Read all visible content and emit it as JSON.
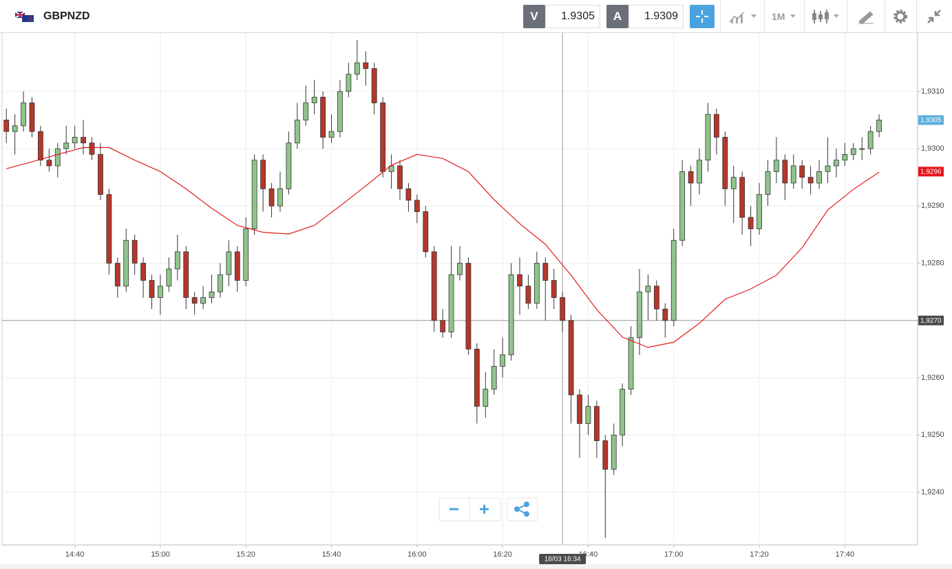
{
  "toolbar": {
    "symbol": "GBPNZD",
    "bid_label": "V",
    "bid": 1.9305,
    "ask_label": "A",
    "ask": 1.9309,
    "timeframe": "1M"
  },
  "chart_data": {
    "type": "candlestick",
    "up_color": "#8fc48a",
    "down_color": "#b5372b",
    "x": [
      "14:24",
      "14:26",
      "14:28",
      "14:30",
      "14:32",
      "14:34",
      "14:36",
      "14:38",
      "14:40",
      "14:42",
      "14:44",
      "14:46",
      "14:48",
      "14:50",
      "14:52",
      "14:54",
      "14:56",
      "14:58",
      "15:00",
      "15:02",
      "15:04",
      "15:06",
      "15:08",
      "15:10",
      "15:12",
      "15:14",
      "15:16",
      "15:18",
      "15:20",
      "15:22",
      "15:24",
      "15:26",
      "15:28",
      "15:30",
      "15:32",
      "15:34",
      "15:36",
      "15:38",
      "15:40",
      "15:42",
      "15:44",
      "15:46",
      "15:48",
      "15:50",
      "15:52",
      "15:54",
      "15:56",
      "15:58",
      "16:00",
      "16:02",
      "16:04",
      "16:06",
      "16:08",
      "16:10",
      "16:12",
      "16:14",
      "16:16",
      "16:18",
      "16:20",
      "16:22",
      "16:24",
      "16:26",
      "16:28",
      "16:30",
      "16:32",
      "16:34",
      "16:36",
      "16:38",
      "16:40",
      "16:42",
      "16:44",
      "16:46",
      "16:48",
      "16:50",
      "16:52",
      "16:54",
      "16:56",
      "16:58",
      "17:00",
      "17:02",
      "17:04",
      "17:06",
      "17:08",
      "17:10",
      "17:12",
      "17:14",
      "17:16",
      "17:18",
      "17:20",
      "17:22",
      "17:24",
      "17:26",
      "17:28",
      "17:30",
      "17:32",
      "17:34",
      "17:36",
      "17:38",
      "17:40",
      "17:42",
      "17:44",
      "17:46",
      "17:48"
    ],
    "open": [
      1.9305,
      1.9303,
      1.9304,
      1.9308,
      1.9303,
      1.9298,
      1.9297,
      1.93,
      1.9301,
      1.9302,
      1.9301,
      1.9299,
      1.9292,
      1.928,
      1.9276,
      1.9284,
      1.928,
      1.9277,
      1.9274,
      1.9276,
      1.9279,
      1.9282,
      1.9274,
      1.9273,
      1.9274,
      1.9275,
      1.9278,
      1.9282,
      1.9277,
      1.9286,
      1.9298,
      1.9293,
      1.929,
      1.9293,
      1.9301,
      1.9305,
      1.9308,
      1.9309,
      1.9302,
      1.9303,
      1.931,
      1.9313,
      1.9315,
      1.9314,
      1.9308,
      1.9296,
      1.9297,
      1.9293,
      1.9291,
      1.9289,
      1.9282,
      1.927,
      1.9268,
      1.9278,
      1.928,
      1.9265,
      1.9255,
      1.9258,
      1.9262,
      1.9264,
      1.9278,
      1.9276,
      1.9273,
      1.928,
      1.9277,
      1.9274,
      1.927,
      1.9257,
      1.9252,
      1.9255,
      1.9249,
      1.9244,
      1.925,
      1.9258,
      1.9267,
      1.9275,
      1.9276,
      1.9272,
      1.927,
      1.9284,
      1.9296,
      1.9294,
      1.9298,
      1.9306,
      1.9302,
      1.9293,
      1.9295,
      1.9288,
      1.9286,
      1.9292,
      1.9296,
      1.9298,
      1.9294,
      1.9297,
      1.9295,
      1.9294,
      1.9296,
      1.9297,
      1.9298,
      1.9299,
      1.93,
      1.93,
      1.9303
    ],
    "high": [
      1.9307,
      1.9306,
      1.931,
      1.9309,
      1.9304,
      1.93,
      1.9301,
      1.9304,
      1.9304,
      1.9305,
      1.9302,
      1.9301,
      1.9293,
      1.9281,
      1.9286,
      1.9285,
      1.9281,
      1.9278,
      1.9278,
      1.9281,
      1.9285,
      1.9283,
      1.9275,
      1.9276,
      1.9278,
      1.928,
      1.9284,
      1.9283,
      1.9288,
      1.9299,
      1.9299,
      1.9294,
      1.9296,
      1.9303,
      1.9308,
      1.9311,
      1.9312,
      1.931,
      1.9306,
      1.9312,
      1.9315,
      1.9319,
      1.9317,
      1.9315,
      1.9309,
      1.9299,
      1.9298,
      1.9294,
      1.9292,
      1.929,
      1.9283,
      1.9272,
      1.9283,
      1.9283,
      1.9281,
      1.9266,
      1.9261,
      1.9265,
      1.9267,
      1.928,
      1.9281,
      1.9278,
      1.9282,
      1.9281,
      1.9279,
      1.9275,
      1.9271,
      1.9258,
      1.9257,
      1.9256,
      1.925,
      1.9252,
      1.9259,
      1.9269,
      1.9279,
      1.9278,
      1.9277,
      1.9273,
      1.9286,
      1.9298,
      1.9297,
      1.93,
      1.9308,
      1.9307,
      1.9303,
      1.9297,
      1.9296,
      1.929,
      1.9294,
      1.9298,
      1.9302,
      1.9299,
      1.9299,
      1.9298,
      1.9297,
      1.9298,
      1.9302,
      1.93,
      1.9301,
      1.9301,
      1.9302,
      1.9304,
      1.9306
    ],
    "low": [
      1.9301,
      1.9299,
      1.9303,
      1.9302,
      1.9297,
      1.9296,
      1.9295,
      1.9299,
      1.93,
      1.9299,
      1.9298,
      1.9291,
      1.9278,
      1.9274,
      1.9275,
      1.9278,
      1.9274,
      1.9272,
      1.9271,
      1.9275,
      1.9277,
      1.9272,
      1.9271,
      1.9272,
      1.9273,
      1.9274,
      1.9276,
      1.9275,
      1.9276,
      1.9285,
      1.9289,
      1.9288,
      1.9289,
      1.9292,
      1.93,
      1.9304,
      1.9306,
      1.93,
      1.9301,
      1.9302,
      1.9309,
      1.9312,
      1.9311,
      1.9306,
      1.9295,
      1.9293,
      1.9291,
      1.9289,
      1.9287,
      1.9281,
      1.9268,
      1.9267,
      1.9267,
      1.9277,
      1.9264,
      1.9252,
      1.9253,
      1.9257,
      1.926,
      1.9263,
      1.9271,
      1.9272,
      1.9272,
      1.927,
      1.9272,
      1.9268,
      1.9252,
      1.9246,
      1.925,
      1.9246,
      1.9232,
      1.9243,
      1.9248,
      1.9257,
      1.9264,
      1.927,
      1.927,
      1.9267,
      1.9269,
      1.9283,
      1.929,
      1.9292,
      1.9296,
      1.9299,
      1.929,
      1.9287,
      1.9285,
      1.9283,
      1.9285,
      1.929,
      1.9294,
      1.9291,
      1.9293,
      1.9293,
      1.9292,
      1.9293,
      1.9294,
      1.9295,
      1.9297,
      1.9298,
      1.9298,
      1.9299,
      1.9302
    ],
    "close": [
      1.9303,
      1.9304,
      1.9308,
      1.9303,
      1.9298,
      1.9297,
      1.93,
      1.9301,
      1.9302,
      1.9301,
      1.9299,
      1.9292,
      1.928,
      1.9276,
      1.9284,
      1.928,
      1.9277,
      1.9274,
      1.9276,
      1.9279,
      1.9282,
      1.9274,
      1.9273,
      1.9274,
      1.9275,
      1.9278,
      1.9282,
      1.9277,
      1.9286,
      1.9298,
      1.9293,
      1.929,
      1.9293,
      1.9301,
      1.9305,
      1.9308,
      1.9309,
      1.9302,
      1.9303,
      1.931,
      1.9313,
      1.9315,
      1.9314,
      1.9308,
      1.9296,
      1.9297,
      1.9293,
      1.9291,
      1.9289,
      1.9282,
      1.927,
      1.9268,
      1.9278,
      1.928,
      1.9265,
      1.9255,
      1.9258,
      1.9262,
      1.9264,
      1.9278,
      1.9276,
      1.9273,
      1.928,
      1.9277,
      1.9274,
      1.927,
      1.9257,
      1.9252,
      1.9255,
      1.9249,
      1.9244,
      1.925,
      1.9258,
      1.9267,
      1.9275,
      1.9276,
      1.9272,
      1.927,
      1.9284,
      1.9296,
      1.9294,
      1.9298,
      1.9306,
      1.9302,
      1.9293,
      1.9295,
      1.9288,
      1.9286,
      1.9292,
      1.9296,
      1.9298,
      1.9294,
      1.9297,
      1.9295,
      1.9294,
      1.9296,
      1.9297,
      1.9298,
      1.9299,
      1.93,
      1.93,
      1.9303,
      1.9305
    ],
    "lines": [
      {
        "color": "#e31b1b",
        "x": [
          "14:24",
          "14:30",
          "14:36",
          "14:42",
          "14:48",
          "14:54",
          "15:00",
          "15:06",
          "15:12",
          "15:18",
          "15:24",
          "15:30",
          "15:36",
          "15:42",
          "15:48",
          "15:54",
          "16:00",
          "16:06",
          "16:12",
          "16:18",
          "16:24",
          "16:30",
          "16:36",
          "16:42",
          "16:48",
          "16:54",
          "17:00",
          "17:06",
          "17:12",
          "17:18",
          "17:24",
          "17:30",
          "17:36",
          "17:42",
          "17:48"
        ],
        "values": [
          1.92965,
          1.92977,
          1.9299,
          1.93002,
          1.93002,
          1.9298,
          1.9296,
          1.9293,
          1.92896,
          1.92866,
          1.92854,
          1.92851,
          1.92866,
          1.929,
          1.92935,
          1.92971,
          1.9299,
          1.92983,
          1.9296,
          1.92911,
          1.92869,
          1.92833,
          1.92779,
          1.92719,
          1.92671,
          1.92653,
          1.92662,
          1.92695,
          1.92737,
          1.92755,
          1.92779,
          1.92827,
          1.92893,
          1.92929,
          1.92959
        ]
      }
    ],
    "xlim": [
      "14:23",
      "17:57"
    ],
    "xticks": [
      "14:40",
      "15:00",
      "15:20",
      "15:40",
      "16:00",
      "16:20",
      "16:40",
      "17:00",
      "17:20",
      "17:40"
    ],
    "ylim": [
      1.92308,
      1.93202
    ],
    "yticks": [
      {
        "value": 1.924,
        "label": "1,9240"
      },
      {
        "value": 1.925,
        "label": "1,9250"
      },
      {
        "value": 1.926,
        "label": "1,9260"
      },
      {
        "value": 1.927,
        "label": "1,9270"
      },
      {
        "value": 1.928,
        "label": "1,9280"
      },
      {
        "value": 1.929,
        "label": "1,9290"
      },
      {
        "value": 1.93,
        "label": "1,9300"
      },
      {
        "value": 1.931,
        "label": "1,9310"
      }
    ],
    "grid": true,
    "markers": [
      {
        "value": 1.9305,
        "label": "1,9305",
        "color": "#5aaee0"
      },
      {
        "value": 1.9296,
        "label": "1,9296",
        "color": "#e8131b"
      }
    ],
    "crosshair": {
      "x": "16:34",
      "y": 1.927,
      "x_label": "18/03 16:34",
      "y_label": "1,9270"
    }
  }
}
